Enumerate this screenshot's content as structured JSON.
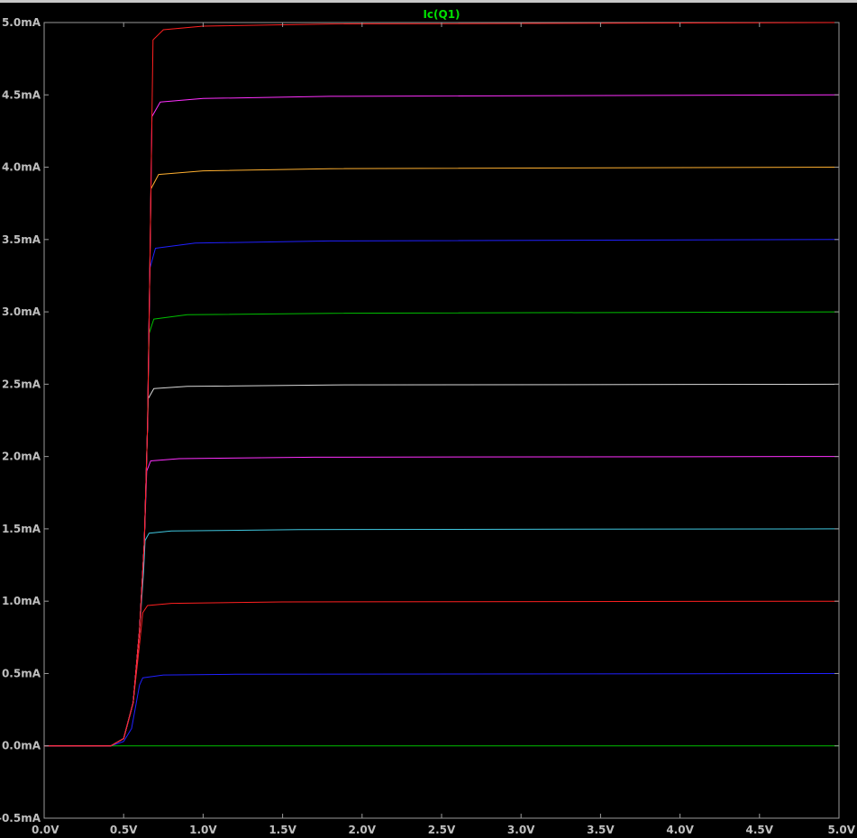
{
  "trace_label": "Ic(Q1)",
  "colors": {
    "background": "#000000",
    "axis": "#9a9a9a",
    "tick_text": "#bfbfbf",
    "trace_label": "#00e000"
  },
  "chart_data": {
    "type": "line",
    "title": "Ic(Q1)",
    "xlabel": "",
    "ylabel": "",
    "xlim": [
      0,
      5
    ],
    "ylim": [
      -0.5,
      5.0
    ],
    "grid": false,
    "x_unit": "V",
    "y_unit": "mA",
    "x_ticks": [
      "0.0V",
      "0.5V",
      "1.0V",
      "1.5V",
      "2.0V",
      "2.5V",
      "3.0V",
      "3.5V",
      "4.0V",
      "4.5V",
      "5.0V"
    ],
    "y_ticks": [
      "5.0mA",
      "4.5mA",
      "4.0mA",
      "3.5mA",
      "3.0mA",
      "2.5mA",
      "2.0mA",
      "1.5mA",
      "1.0mA",
      "0.5mA",
      "0.0mA",
      "-0.5mA"
    ],
    "x_tick_values": [
      0,
      0.5,
      1.0,
      1.5,
      2.0,
      2.5,
      3.0,
      3.5,
      4.0,
      4.5,
      5.0
    ],
    "y_tick_values": [
      5.0,
      4.5,
      4.0,
      3.5,
      3.0,
      2.5,
      2.0,
      1.5,
      1.0,
      0.5,
      0.0,
      -0.5
    ],
    "series": [
      {
        "color": "#00c000",
        "values": [
          [
            0,
            0
          ],
          [
            5,
            0
          ]
        ]
      },
      {
        "color": "#2020ff",
        "values": [
          [
            0,
            0
          ],
          [
            0.42,
            0
          ],
          [
            0.5,
            0.03
          ],
          [
            0.55,
            0.12
          ],
          [
            0.58,
            0.3
          ],
          [
            0.6,
            0.42
          ],
          [
            0.62,
            0.47
          ],
          [
            0.75,
            0.49
          ],
          [
            1.2,
            0.495
          ],
          [
            5,
            0.5
          ]
        ]
      },
      {
        "color": "#ff2020",
        "values": [
          [
            0,
            0
          ],
          [
            0.42,
            0
          ],
          [
            0.5,
            0.05
          ],
          [
            0.56,
            0.3
          ],
          [
            0.6,
            0.7
          ],
          [
            0.62,
            0.92
          ],
          [
            0.65,
            0.97
          ],
          [
            0.8,
            0.985
          ],
          [
            1.5,
            0.995
          ],
          [
            5,
            1.0
          ]
        ]
      },
      {
        "color": "#40c8e0",
        "values": [
          [
            0,
            0
          ],
          [
            0.42,
            0
          ],
          [
            0.5,
            0.05
          ],
          [
            0.56,
            0.3
          ],
          [
            0.6,
            0.8
          ],
          [
            0.625,
            1.2
          ],
          [
            0.635,
            1.42
          ],
          [
            0.66,
            1.47
          ],
          [
            0.8,
            1.485
          ],
          [
            1.6,
            1.495
          ],
          [
            5,
            1.5
          ]
        ]
      },
      {
        "color": "#ff30ff",
        "values": [
          [
            0,
            0
          ],
          [
            0.42,
            0
          ],
          [
            0.5,
            0.05
          ],
          [
            0.56,
            0.3
          ],
          [
            0.6,
            0.8
          ],
          [
            0.63,
            1.4
          ],
          [
            0.645,
            1.9
          ],
          [
            0.67,
            1.97
          ],
          [
            0.85,
            1.985
          ],
          [
            1.7,
            1.995
          ],
          [
            5,
            2.0
          ]
        ]
      },
      {
        "color": "#d8d8d8",
        "values": [
          [
            0,
            0
          ],
          [
            0.42,
            0
          ],
          [
            0.5,
            0.05
          ],
          [
            0.56,
            0.3
          ],
          [
            0.6,
            0.8
          ],
          [
            0.63,
            1.4
          ],
          [
            0.65,
            2.2
          ],
          [
            0.655,
            2.4
          ],
          [
            0.69,
            2.47
          ],
          [
            0.9,
            2.485
          ],
          [
            1.8,
            2.495
          ],
          [
            5,
            2.5
          ]
        ]
      },
      {
        "color": "#00c000",
        "values": [
          [
            0,
            0
          ],
          [
            0.42,
            0
          ],
          [
            0.5,
            0.05
          ],
          [
            0.56,
            0.3
          ],
          [
            0.6,
            0.8
          ],
          [
            0.63,
            1.4
          ],
          [
            0.65,
            2.2
          ],
          [
            0.66,
            2.85
          ],
          [
            0.69,
            2.95
          ],
          [
            0.9,
            2.98
          ],
          [
            1.8,
            2.99
          ],
          [
            5,
            3.0
          ]
        ]
      },
      {
        "color": "#2020ff",
        "values": [
          [
            0,
            0
          ],
          [
            0.42,
            0
          ],
          [
            0.5,
            0.05
          ],
          [
            0.56,
            0.3
          ],
          [
            0.6,
            0.8
          ],
          [
            0.63,
            1.4
          ],
          [
            0.65,
            2.2
          ],
          [
            0.665,
            3.3
          ],
          [
            0.7,
            3.44
          ],
          [
            0.95,
            3.475
          ],
          [
            1.8,
            3.49
          ],
          [
            5,
            3.5
          ]
        ]
      },
      {
        "color": "#ffb030",
        "values": [
          [
            0,
            0
          ],
          [
            0.42,
            0
          ],
          [
            0.5,
            0.05
          ],
          [
            0.56,
            0.3
          ],
          [
            0.6,
            0.8
          ],
          [
            0.63,
            1.4
          ],
          [
            0.65,
            2.2
          ],
          [
            0.665,
            3.3
          ],
          [
            0.672,
            3.85
          ],
          [
            0.72,
            3.95
          ],
          [
            1.0,
            3.975
          ],
          [
            1.8,
            3.99
          ],
          [
            5,
            4.0
          ]
        ]
      },
      {
        "color": "#ff30ff",
        "values": [
          [
            0,
            0
          ],
          [
            0.42,
            0
          ],
          [
            0.5,
            0.05
          ],
          [
            0.56,
            0.3
          ],
          [
            0.6,
            0.8
          ],
          [
            0.63,
            1.4
          ],
          [
            0.65,
            2.2
          ],
          [
            0.665,
            3.3
          ],
          [
            0.672,
            3.85
          ],
          [
            0.678,
            4.35
          ],
          [
            0.73,
            4.45
          ],
          [
            1.0,
            4.475
          ],
          [
            1.8,
            4.49
          ],
          [
            5,
            4.5
          ]
        ]
      },
      {
        "color": "#ff2020",
        "values": [
          [
            0,
            0
          ],
          [
            0.42,
            0
          ],
          [
            0.5,
            0.05
          ],
          [
            0.56,
            0.3
          ],
          [
            0.6,
            0.8
          ],
          [
            0.63,
            1.4
          ],
          [
            0.65,
            2.2
          ],
          [
            0.665,
            3.3
          ],
          [
            0.672,
            3.85
          ],
          [
            0.678,
            4.35
          ],
          [
            0.685,
            4.88
          ],
          [
            0.75,
            4.95
          ],
          [
            1.0,
            4.975
          ],
          [
            1.8,
            4.99
          ],
          [
            5,
            5.0
          ]
        ]
      }
    ]
  }
}
